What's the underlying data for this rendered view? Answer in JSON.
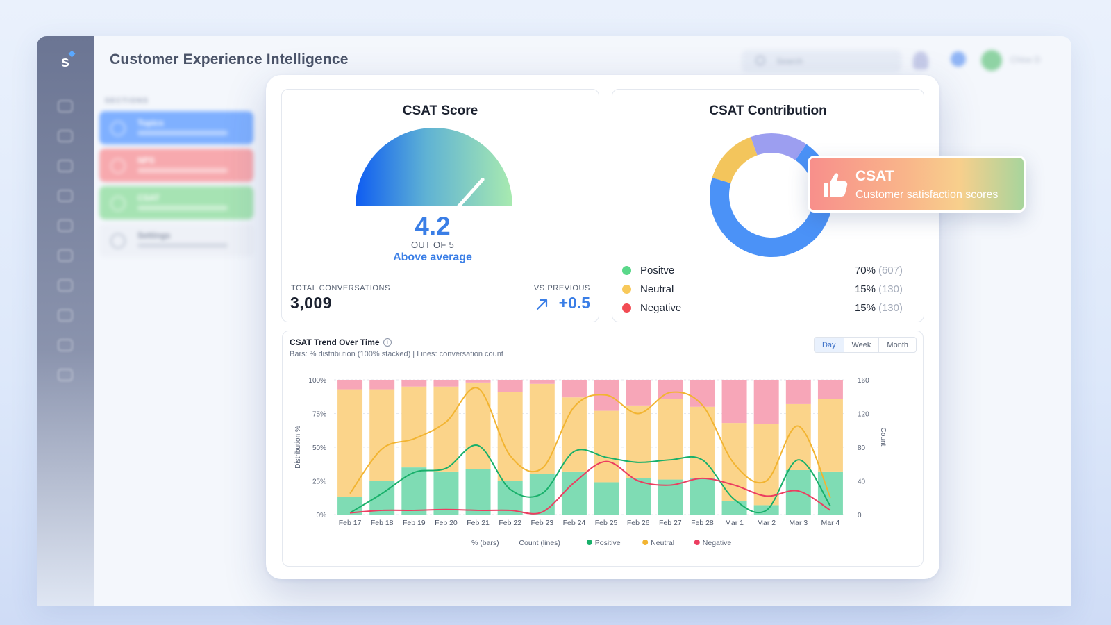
{
  "app": {
    "title": "Customer Experience Intelligence",
    "logo_letter": "s",
    "search_placeholder": "Search",
    "user_name": "Chloe D",
    "sections_label": "SECTIONS",
    "section_cards": [
      {
        "title": "Topics",
        "color": "#7fb0ff"
      },
      {
        "title": "NPS",
        "color": "#f7a9ae"
      },
      {
        "title": "CSAT",
        "color": "#a6e3b3"
      },
      {
        "title": "Settings",
        "color": "#eef1f7"
      }
    ]
  },
  "score": {
    "title": "CSAT Score",
    "value": "4.2",
    "out_of": "OUT OF 5",
    "verdict": "Above average",
    "gauge_value": 4.2,
    "gauge_max": 5,
    "total_label": "TOTAL CONVERSATIONS",
    "total_value": "3,009",
    "vs_label": "VS PREVIOUS",
    "vs_value": "+0.5"
  },
  "contribution": {
    "title": "CSAT Contribution",
    "items": [
      {
        "label": "Positve",
        "pct": "70%",
        "count": "(607)",
        "share": 70,
        "color": "#5ad88a"
      },
      {
        "label": "Neutral",
        "pct": "15%",
        "count": "(130)",
        "share": 15,
        "color": "#f8c95a"
      },
      {
        "label": "Negative",
        "pct": "15%",
        "count": "(130)",
        "share": 15,
        "color": "#f24b53"
      }
    ],
    "donut_colors": [
      "#4b92f7",
      "#f3c55c",
      "#9c9ef0"
    ]
  },
  "chip": {
    "title": "CSAT",
    "subtitle": "Customer satisfaction scores"
  },
  "trend": {
    "title": "CSAT Trend Over Time",
    "info_glyph": "i",
    "subtitle": "Bars: % distribution (100% stacked) | Lines: conversation count",
    "ranges": [
      "Day",
      "Week",
      "Month"
    ],
    "active_range": "Day"
  },
  "chart_data": {
    "type": "bar",
    "categories": [
      "Feb 17",
      "Feb 18",
      "Feb 19",
      "Feb 20",
      "Feb 21",
      "Feb 22",
      "Feb 23",
      "Feb 24",
      "Feb 25",
      "Feb 26",
      "Feb 27",
      "Feb 28",
      "Mar 1",
      "Mar 2",
      "Mar 3",
      "Mar 4"
    ],
    "ylabel": "Distribution %",
    "y2label": "Count",
    "y_ticks": [
      "0%",
      "25%",
      "50%",
      "75%",
      "100%"
    ],
    "y2_ticks": [
      "0",
      "40",
      "80",
      "120",
      "160"
    ],
    "ylim": [
      0,
      100
    ],
    "y2lim": [
      0,
      160
    ],
    "bar_series": [
      {
        "name": "Positive",
        "color": "#7fdcb4",
        "values": [
          13,
          25,
          35,
          32,
          34,
          25,
          30,
          32,
          24,
          27,
          26,
          27,
          10,
          7,
          33,
          32
        ]
      },
      {
        "name": "Neutral",
        "color": "#fbd48a",
        "values": [
          80,
          68,
          60,
          63,
          64,
          66,
          67,
          55,
          53,
          54,
          60,
          53,
          58,
          60,
          49,
          54
        ]
      },
      {
        "name": "Negative",
        "color": "#f7a6b8",
        "values": [
          7,
          7,
          5,
          5,
          2,
          9,
          3,
          13,
          23,
          19,
          14,
          20,
          32,
          33,
          18,
          14
        ]
      }
    ],
    "line_series": [
      {
        "name": "Neutral",
        "color": "#f2b431",
        "values": [
          25,
          78,
          90,
          110,
          150,
          70,
          55,
          128,
          142,
          120,
          145,
          130,
          60,
          40,
          105,
          20
        ]
      },
      {
        "name": "Positive",
        "color": "#18b06a",
        "values": [
          2,
          25,
          50,
          55,
          82,
          30,
          25,
          75,
          68,
          62,
          65,
          65,
          18,
          5,
          65,
          10
        ]
      },
      {
        "name": "Negative",
        "color": "#ec3d60",
        "values": [
          2,
          5,
          5,
          6,
          5,
          5,
          3,
          38,
          63,
          40,
          35,
          43,
          35,
          22,
          28,
          5
        ]
      }
    ],
    "legend": [
      {
        "label": "% (bars)",
        "color": ""
      },
      {
        "label": "Count (lines)",
        "color": ""
      },
      {
        "label": "Positive",
        "color": "#18b06a"
      },
      {
        "label": "Neutral",
        "color": "#f2b431"
      },
      {
        "label": "Negative",
        "color": "#ec3d60"
      }
    ],
    "legend_position": "bottom"
  }
}
